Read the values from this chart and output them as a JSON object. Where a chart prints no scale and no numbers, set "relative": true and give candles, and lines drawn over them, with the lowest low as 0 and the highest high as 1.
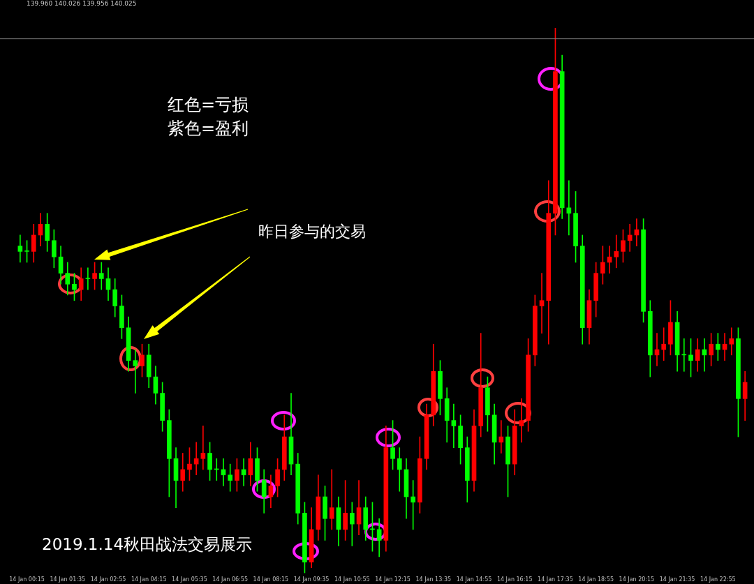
{
  "chart_data": {
    "type": "candlestick",
    "relative": true,
    "subtitle": "139.960 140.026 139.956 140.025",
    "annotations": [
      "红色=亏损",
      "紫色=盈利",
      "昨日参与的交易",
      "2019.1.14秋田战法交易展示"
    ],
    "categories": [
      null,
      "14 Jan 00:15",
      null,
      null,
      null,
      null,
      null,
      "14 Jan 01:35",
      null,
      null,
      null,
      null,
      null,
      "14 Jan 02:55",
      null,
      null,
      null,
      null,
      null,
      "14 Jan 04:15",
      null,
      null,
      null,
      null,
      null,
      "14 Jan 05:35",
      null,
      null,
      null,
      null,
      null,
      "14 Jan 06:55",
      null,
      null,
      null,
      null,
      null,
      "14 Jan 08:15",
      null,
      null,
      null,
      null,
      null,
      "14 Jan 09:35",
      null,
      null,
      null,
      null,
      null,
      "14 Jan 10:55",
      null,
      null,
      null,
      null,
      null,
      "14 Jan 12:15",
      null,
      null,
      null,
      null,
      null,
      "14 Jan 13:35",
      null,
      null,
      null,
      null,
      null,
      "14 Jan 14:55",
      null,
      null,
      null,
      null,
      null,
      "14 Jan 16:15",
      null,
      null,
      null,
      null,
      null,
      "14 Jan 17:35",
      null,
      null,
      null,
      null,
      null,
      "14 Jan 18:55",
      null,
      null,
      null,
      null,
      null,
      "14 Jan 20:15",
      null,
      null,
      null,
      null,
      null,
      "14 Jan 21:35",
      null,
      null,
      null,
      null,
      null,
      "14 Jan 22:55",
      null,
      null,
      null,
      null
    ],
    "ohlc": [
      [
        0.6,
        0.62,
        0.57,
        0.59
      ],
      [
        0.59,
        0.61,
        0.57,
        0.59
      ],
      [
        0.59,
        0.64,
        0.57,
        0.62
      ],
      [
        0.62,
        0.66,
        0.6,
        0.64
      ],
      [
        0.64,
        0.66,
        0.59,
        0.61
      ],
      [
        0.61,
        0.63,
        0.56,
        0.58
      ],
      [
        0.58,
        0.6,
        0.53,
        0.55
      ],
      [
        0.55,
        0.57,
        0.51,
        0.53
      ],
      [
        0.53,
        0.55,
        0.5,
        0.52
      ],
      [
        0.52,
        0.56,
        0.5,
        0.54
      ],
      [
        0.54,
        0.56,
        0.52,
        0.54
      ],
      [
        0.54,
        0.57,
        0.52,
        0.55
      ],
      [
        0.55,
        0.57,
        0.52,
        0.54
      ],
      [
        0.54,
        0.56,
        0.5,
        0.52
      ],
      [
        0.52,
        0.54,
        0.47,
        0.49
      ],
      [
        0.49,
        0.51,
        0.43,
        0.45
      ],
      [
        0.45,
        0.47,
        0.37,
        0.39
      ],
      [
        0.39,
        0.41,
        0.33,
        0.38
      ],
      [
        0.38,
        0.42,
        0.36,
        0.4
      ],
      [
        0.4,
        0.42,
        0.34,
        0.36
      ],
      [
        0.36,
        0.38,
        0.31,
        0.33
      ],
      [
        0.33,
        0.35,
        0.26,
        0.28
      ],
      [
        0.28,
        0.3,
        0.14,
        0.21
      ],
      [
        0.21,
        0.23,
        0.12,
        0.17
      ],
      [
        0.17,
        0.22,
        0.15,
        0.19
      ],
      [
        0.19,
        0.23,
        0.17,
        0.2
      ],
      [
        0.2,
        0.24,
        0.18,
        0.21
      ],
      [
        0.21,
        0.27,
        0.19,
        0.22
      ],
      [
        0.22,
        0.24,
        0.17,
        0.19
      ],
      [
        0.19,
        0.21,
        0.17,
        0.19
      ],
      [
        0.19,
        0.21,
        0.16,
        0.18
      ],
      [
        0.18,
        0.2,
        0.15,
        0.17
      ],
      [
        0.17,
        0.21,
        0.15,
        0.19
      ],
      [
        0.19,
        0.21,
        0.16,
        0.18
      ],
      [
        0.18,
        0.24,
        0.16,
        0.21
      ],
      [
        0.21,
        0.23,
        0.15,
        0.17
      ],
      [
        0.17,
        0.19,
        0.11,
        0.14
      ],
      [
        0.14,
        0.18,
        0.12,
        0.16
      ],
      [
        0.16,
        0.21,
        0.14,
        0.19
      ],
      [
        0.19,
        0.29,
        0.17,
        0.25
      ],
      [
        0.25,
        0.33,
        0.18,
        0.2
      ],
      [
        0.2,
        0.22,
        0.09,
        0.11
      ],
      [
        0.11,
        0.13,
        0,
        0.02
      ],
      [
        0.02,
        0.12,
        0.01,
        0.08
      ],
      [
        0.08,
        0.18,
        0.06,
        0.14
      ],
      [
        0.14,
        0.16,
        0.06,
        0.1
      ],
      [
        0.1,
        0.19,
        0.08,
        0.12
      ],
      [
        0.12,
        0.14,
        0.05,
        0.08
      ],
      [
        0.08,
        0.17,
        0.06,
        0.11
      ],
      [
        0.11,
        0.13,
        0.05,
        0.09
      ],
      [
        0.09,
        0.17,
        0.07,
        0.12
      ],
      [
        0.12,
        0.14,
        0.06,
        0.08
      ],
      [
        0.08,
        0.13,
        0.04,
        0.08
      ],
      [
        0.08,
        0.1,
        0.03,
        0.06
      ],
      [
        0.06,
        0.27,
        0.04,
        0.23
      ],
      [
        0.23,
        0.28,
        0.19,
        0.21
      ],
      [
        0.21,
        0.23,
        0.15,
        0.19
      ],
      [
        0.19,
        0.21,
        0.1,
        0.14
      ],
      [
        0.14,
        0.17,
        0.08,
        0.13
      ],
      [
        0.13,
        0.25,
        0.11,
        0.21
      ],
      [
        0.21,
        0.31,
        0.19,
        0.29
      ],
      [
        0.29,
        0.42,
        0.27,
        0.37
      ],
      [
        0.37,
        0.39,
        0.29,
        0.32
      ],
      [
        0.32,
        0.34,
        0.24,
        0.28
      ],
      [
        0.28,
        0.31,
        0.23,
        0.27
      ],
      [
        0.27,
        0.29,
        0.2,
        0.23
      ],
      [
        0.23,
        0.25,
        0.13,
        0.17
      ],
      [
        0.17,
        0.3,
        0.15,
        0.27
      ],
      [
        0.27,
        0.44,
        0.25,
        0.34
      ],
      [
        0.34,
        0.36,
        0.26,
        0.29
      ],
      [
        0.29,
        0.31,
        0.2,
        0.24
      ],
      [
        0.24,
        0.28,
        0.22,
        0.25
      ],
      [
        0.25,
        0.27,
        0.14,
        0.2
      ],
      [
        0.2,
        0.3,
        0.18,
        0.27
      ],
      [
        0.27,
        0.32,
        0.24,
        0.28
      ],
      [
        0.28,
        0.43,
        0.26,
        0.4
      ],
      [
        0.4,
        0.51,
        0.38,
        0.49
      ],
      [
        0.49,
        0.55,
        0.44,
        0.5
      ],
      [
        0.5,
        0.72,
        0.42,
        0.66
      ],
      [
        0.66,
        1,
        0.62,
        0.92
      ],
      [
        0.92,
        0.95,
        0.65,
        0.67
      ],
      [
        0.67,
        0.72,
        0.62,
        0.66
      ],
      [
        0.66,
        0.7,
        0.57,
        0.6
      ],
      [
        0.6,
        0.62,
        0.42,
        0.45
      ],
      [
        0.45,
        0.52,
        0.42,
        0.5
      ],
      [
        0.5,
        0.57,
        0.47,
        0.55
      ],
      [
        0.55,
        0.6,
        0.53,
        0.57
      ],
      [
        0.57,
        0.6,
        0.55,
        0.58
      ],
      [
        0.58,
        0.62,
        0.56,
        0.59
      ],
      [
        0.59,
        0.63,
        0.57,
        0.61
      ],
      [
        0.61,
        0.64,
        0.59,
        0.62
      ],
      [
        0.62,
        0.65,
        0.6,
        0.63
      ],
      [
        0.63,
        0.65,
        0.46,
        0.48
      ],
      [
        0.48,
        0.5,
        0.36,
        0.4
      ],
      [
        0.4,
        0.44,
        0.38,
        0.41
      ],
      [
        0.41,
        0.45,
        0.39,
        0.42
      ],
      [
        0.42,
        0.5,
        0.4,
        0.46
      ],
      [
        0.46,
        0.48,
        0.37,
        0.4
      ],
      [
        0.4,
        0.43,
        0.37,
        0.4
      ],
      [
        0.4,
        0.43,
        0.36,
        0.39
      ],
      [
        0.39,
        0.43,
        0.37,
        0.41
      ],
      [
        0.41,
        0.43,
        0.37,
        0.4
      ],
      [
        0.4,
        0.44,
        0.38,
        0.42
      ],
      [
        0.42,
        0.44,
        0.39,
        0.41
      ],
      [
        0.41,
        0.44,
        0.39,
        0.42
      ],
      [
        0.42,
        0.45,
        0.4,
        0.43
      ],
      [
        0.43,
        0.45,
        0.25,
        0.32
      ],
      [
        0.32,
        0.37,
        0.28,
        0.35
      ]
    ],
    "colors": [
      "#00ff00",
      "#00ff00",
      "#ff0000",
      "#ff0000",
      "#00ff00",
      "#00ff00",
      "#00ff00",
      "#00ff00",
      "#00ff00",
      "#ff0000",
      "#00ff00",
      "#ff0000",
      "#00ff00",
      "#00ff00",
      "#00ff00",
      "#00ff00",
      "#00ff00",
      "#00ff00",
      "#ff0000",
      "#00ff00",
      "#00ff00",
      "#00ff00",
      "#00ff00",
      "#00ff00",
      "#ff0000",
      "#ff0000",
      "#ff0000",
      "#ff0000",
      "#00ff00",
      "#00ff00",
      "#00ff00",
      "#00ff00",
      "#ff0000",
      "#00ff00",
      "#ff0000",
      "#00ff00",
      "#00ff00",
      "#ff0000",
      "#ff0000",
      "#ff0000",
      "#00ff00",
      "#00ff00",
      "#00ff00",
      "#ff0000",
      "#ff0000",
      "#00ff00",
      "#ff0000",
      "#00ff00",
      "#ff0000",
      "#00ff00",
      "#ff0000",
      "#00ff00",
      "#00ff00",
      "#00ff00",
      "#ff0000",
      "#00ff00",
      "#00ff00",
      "#00ff00",
      "#00ff00",
      "#ff0000",
      "#ff0000",
      "#ff0000",
      "#00ff00",
      "#00ff00",
      "#00ff00",
      "#00ff00",
      "#00ff00",
      "#ff0000",
      "#ff0000",
      "#00ff00",
      "#00ff00",
      "#ff0000",
      "#00ff00",
      "#ff0000",
      "#ff0000",
      "#ff0000",
      "#ff0000",
      "#ff0000",
      "#ff0000",
      "#ff0000",
      "#00ff00",
      "#00ff00",
      "#00ff00",
      "#00ff00",
      "#ff0000",
      "#ff0000",
      "#ff0000",
      "#ff0000",
      "#ff0000",
      "#ff0000",
      "#ff0000",
      "#ff0000",
      "#00ff00",
      "#00ff00",
      "#ff0000",
      "#ff0000",
      "#ff0000",
      "#00ff00",
      "#00ff00",
      "#00ff00",
      "#ff0000",
      "#00ff00",
      "#ff0000",
      "#00ff00",
      "#ff0000",
      "#ff0000",
      "#00ff00",
      "#ff0000"
    ],
    "ref_lines": [
      {
        "axis": "y",
        "value": 0.98,
        "color": "#808080"
      }
    ]
  }
}
